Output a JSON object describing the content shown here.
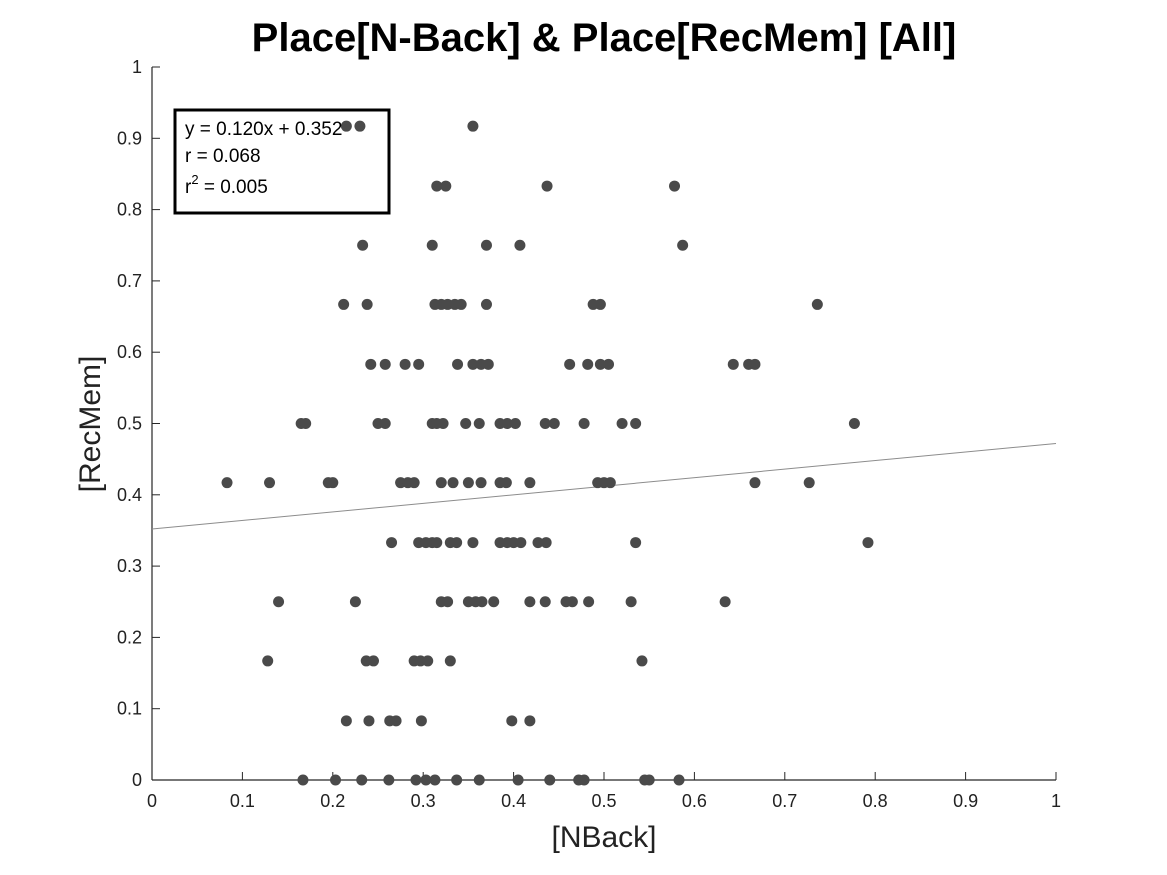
{
  "chart_data": {
    "type": "scatter",
    "title": "Place[N-Back] & Place[RecMem] [All]",
    "xlabel": "[NBack]",
    "ylabel": "[RecMem]",
    "xlim": [
      0,
      1
    ],
    "ylim": [
      0,
      1
    ],
    "x_ticks": [
      "0",
      "0.1",
      "0.2",
      "0.3",
      "0.4",
      "0.5",
      "0.6",
      "0.7",
      "0.8",
      "0.9",
      "1"
    ],
    "y_ticks": [
      "0",
      "0.1",
      "0.2",
      "0.3",
      "0.4",
      "0.5",
      "0.6",
      "0.7",
      "0.8",
      "0.9",
      "1"
    ],
    "grid": false,
    "marker_color": "#4a4a4a",
    "trend_color": "#8c8c8c",
    "trendline": {
      "slope": 0.12,
      "intercept": 0.352
    },
    "annotation": {
      "equation": "y = 0.120x + 0.352",
      "r": "r = 0.068",
      "r2_prefix": "r",
      "r2_sup": "2",
      "r2_value": " = 0.005"
    },
    "points": [
      [
        0.215,
        0.917
      ],
      [
        0.23,
        0.917
      ],
      [
        0.355,
        0.917
      ],
      [
        0.315,
        0.833
      ],
      [
        0.325,
        0.833
      ],
      [
        0.437,
        0.833
      ],
      [
        0.578,
        0.833
      ],
      [
        0.233,
        0.75
      ],
      [
        0.31,
        0.75
      ],
      [
        0.37,
        0.75
      ],
      [
        0.407,
        0.75
      ],
      [
        0.587,
        0.75
      ],
      [
        0.212,
        0.667
      ],
      [
        0.238,
        0.667
      ],
      [
        0.313,
        0.667
      ],
      [
        0.32,
        0.667
      ],
      [
        0.327,
        0.667
      ],
      [
        0.335,
        0.667
      ],
      [
        0.342,
        0.667
      ],
      [
        0.37,
        0.667
      ],
      [
        0.488,
        0.667
      ],
      [
        0.496,
        0.667
      ],
      [
        0.736,
        0.667
      ],
      [
        0.242,
        0.583
      ],
      [
        0.258,
        0.583
      ],
      [
        0.28,
        0.583
      ],
      [
        0.295,
        0.583
      ],
      [
        0.338,
        0.583
      ],
      [
        0.355,
        0.583
      ],
      [
        0.364,
        0.583
      ],
      [
        0.372,
        0.583
      ],
      [
        0.462,
        0.583
      ],
      [
        0.482,
        0.583
      ],
      [
        0.496,
        0.583
      ],
      [
        0.505,
        0.583
      ],
      [
        0.643,
        0.583
      ],
      [
        0.66,
        0.583
      ],
      [
        0.667,
        0.583
      ],
      [
        0.165,
        0.5
      ],
      [
        0.17,
        0.5
      ],
      [
        0.25,
        0.5
      ],
      [
        0.258,
        0.5
      ],
      [
        0.31,
        0.5
      ],
      [
        0.315,
        0.5
      ],
      [
        0.322,
        0.5
      ],
      [
        0.347,
        0.5
      ],
      [
        0.362,
        0.5
      ],
      [
        0.385,
        0.5
      ],
      [
        0.393,
        0.5
      ],
      [
        0.402,
        0.5
      ],
      [
        0.435,
        0.5
      ],
      [
        0.445,
        0.5
      ],
      [
        0.478,
        0.5
      ],
      [
        0.52,
        0.5
      ],
      [
        0.535,
        0.5
      ],
      [
        0.777,
        0.5
      ],
      [
        0.083,
        0.417
      ],
      [
        0.13,
        0.417
      ],
      [
        0.195,
        0.417
      ],
      [
        0.2,
        0.417
      ],
      [
        0.275,
        0.417
      ],
      [
        0.283,
        0.417
      ],
      [
        0.29,
        0.417
      ],
      [
        0.32,
        0.417
      ],
      [
        0.333,
        0.417
      ],
      [
        0.35,
        0.417
      ],
      [
        0.364,
        0.417
      ],
      [
        0.385,
        0.417
      ],
      [
        0.392,
        0.417
      ],
      [
        0.418,
        0.417
      ],
      [
        0.493,
        0.417
      ],
      [
        0.5,
        0.417
      ],
      [
        0.507,
        0.417
      ],
      [
        0.667,
        0.417
      ],
      [
        0.727,
        0.417
      ],
      [
        0.265,
        0.333
      ],
      [
        0.295,
        0.333
      ],
      [
        0.303,
        0.333
      ],
      [
        0.31,
        0.333
      ],
      [
        0.315,
        0.333
      ],
      [
        0.33,
        0.333
      ],
      [
        0.337,
        0.333
      ],
      [
        0.355,
        0.333
      ],
      [
        0.385,
        0.333
      ],
      [
        0.393,
        0.333
      ],
      [
        0.4,
        0.333
      ],
      [
        0.408,
        0.333
      ],
      [
        0.427,
        0.333
      ],
      [
        0.436,
        0.333
      ],
      [
        0.535,
        0.333
      ],
      [
        0.792,
        0.333
      ],
      [
        0.14,
        0.25
      ],
      [
        0.225,
        0.25
      ],
      [
        0.32,
        0.25
      ],
      [
        0.327,
        0.25
      ],
      [
        0.35,
        0.25
      ],
      [
        0.358,
        0.25
      ],
      [
        0.365,
        0.25
      ],
      [
        0.378,
        0.25
      ],
      [
        0.418,
        0.25
      ],
      [
        0.435,
        0.25
      ],
      [
        0.458,
        0.25
      ],
      [
        0.465,
        0.25
      ],
      [
        0.483,
        0.25
      ],
      [
        0.53,
        0.25
      ],
      [
        0.634,
        0.25
      ],
      [
        0.128,
        0.167
      ],
      [
        0.237,
        0.167
      ],
      [
        0.245,
        0.167
      ],
      [
        0.29,
        0.167
      ],
      [
        0.297,
        0.167
      ],
      [
        0.305,
        0.167
      ],
      [
        0.33,
        0.167
      ],
      [
        0.542,
        0.167
      ],
      [
        0.215,
        0.083
      ],
      [
        0.24,
        0.083
      ],
      [
        0.263,
        0.083
      ],
      [
        0.27,
        0.083
      ],
      [
        0.298,
        0.083
      ],
      [
        0.398,
        0.083
      ],
      [
        0.418,
        0.083
      ],
      [
        0.167,
        0.0
      ],
      [
        0.203,
        0.0
      ],
      [
        0.232,
        0.0
      ],
      [
        0.262,
        0.0
      ],
      [
        0.292,
        0.0
      ],
      [
        0.303,
        0.0
      ],
      [
        0.313,
        0.0
      ],
      [
        0.337,
        0.0
      ],
      [
        0.362,
        0.0
      ],
      [
        0.405,
        0.0
      ],
      [
        0.44,
        0.0
      ],
      [
        0.472,
        0.0
      ],
      [
        0.478,
        0.0
      ],
      [
        0.545,
        0.0
      ],
      [
        0.55,
        0.0
      ],
      [
        0.583,
        0.0
      ]
    ]
  }
}
